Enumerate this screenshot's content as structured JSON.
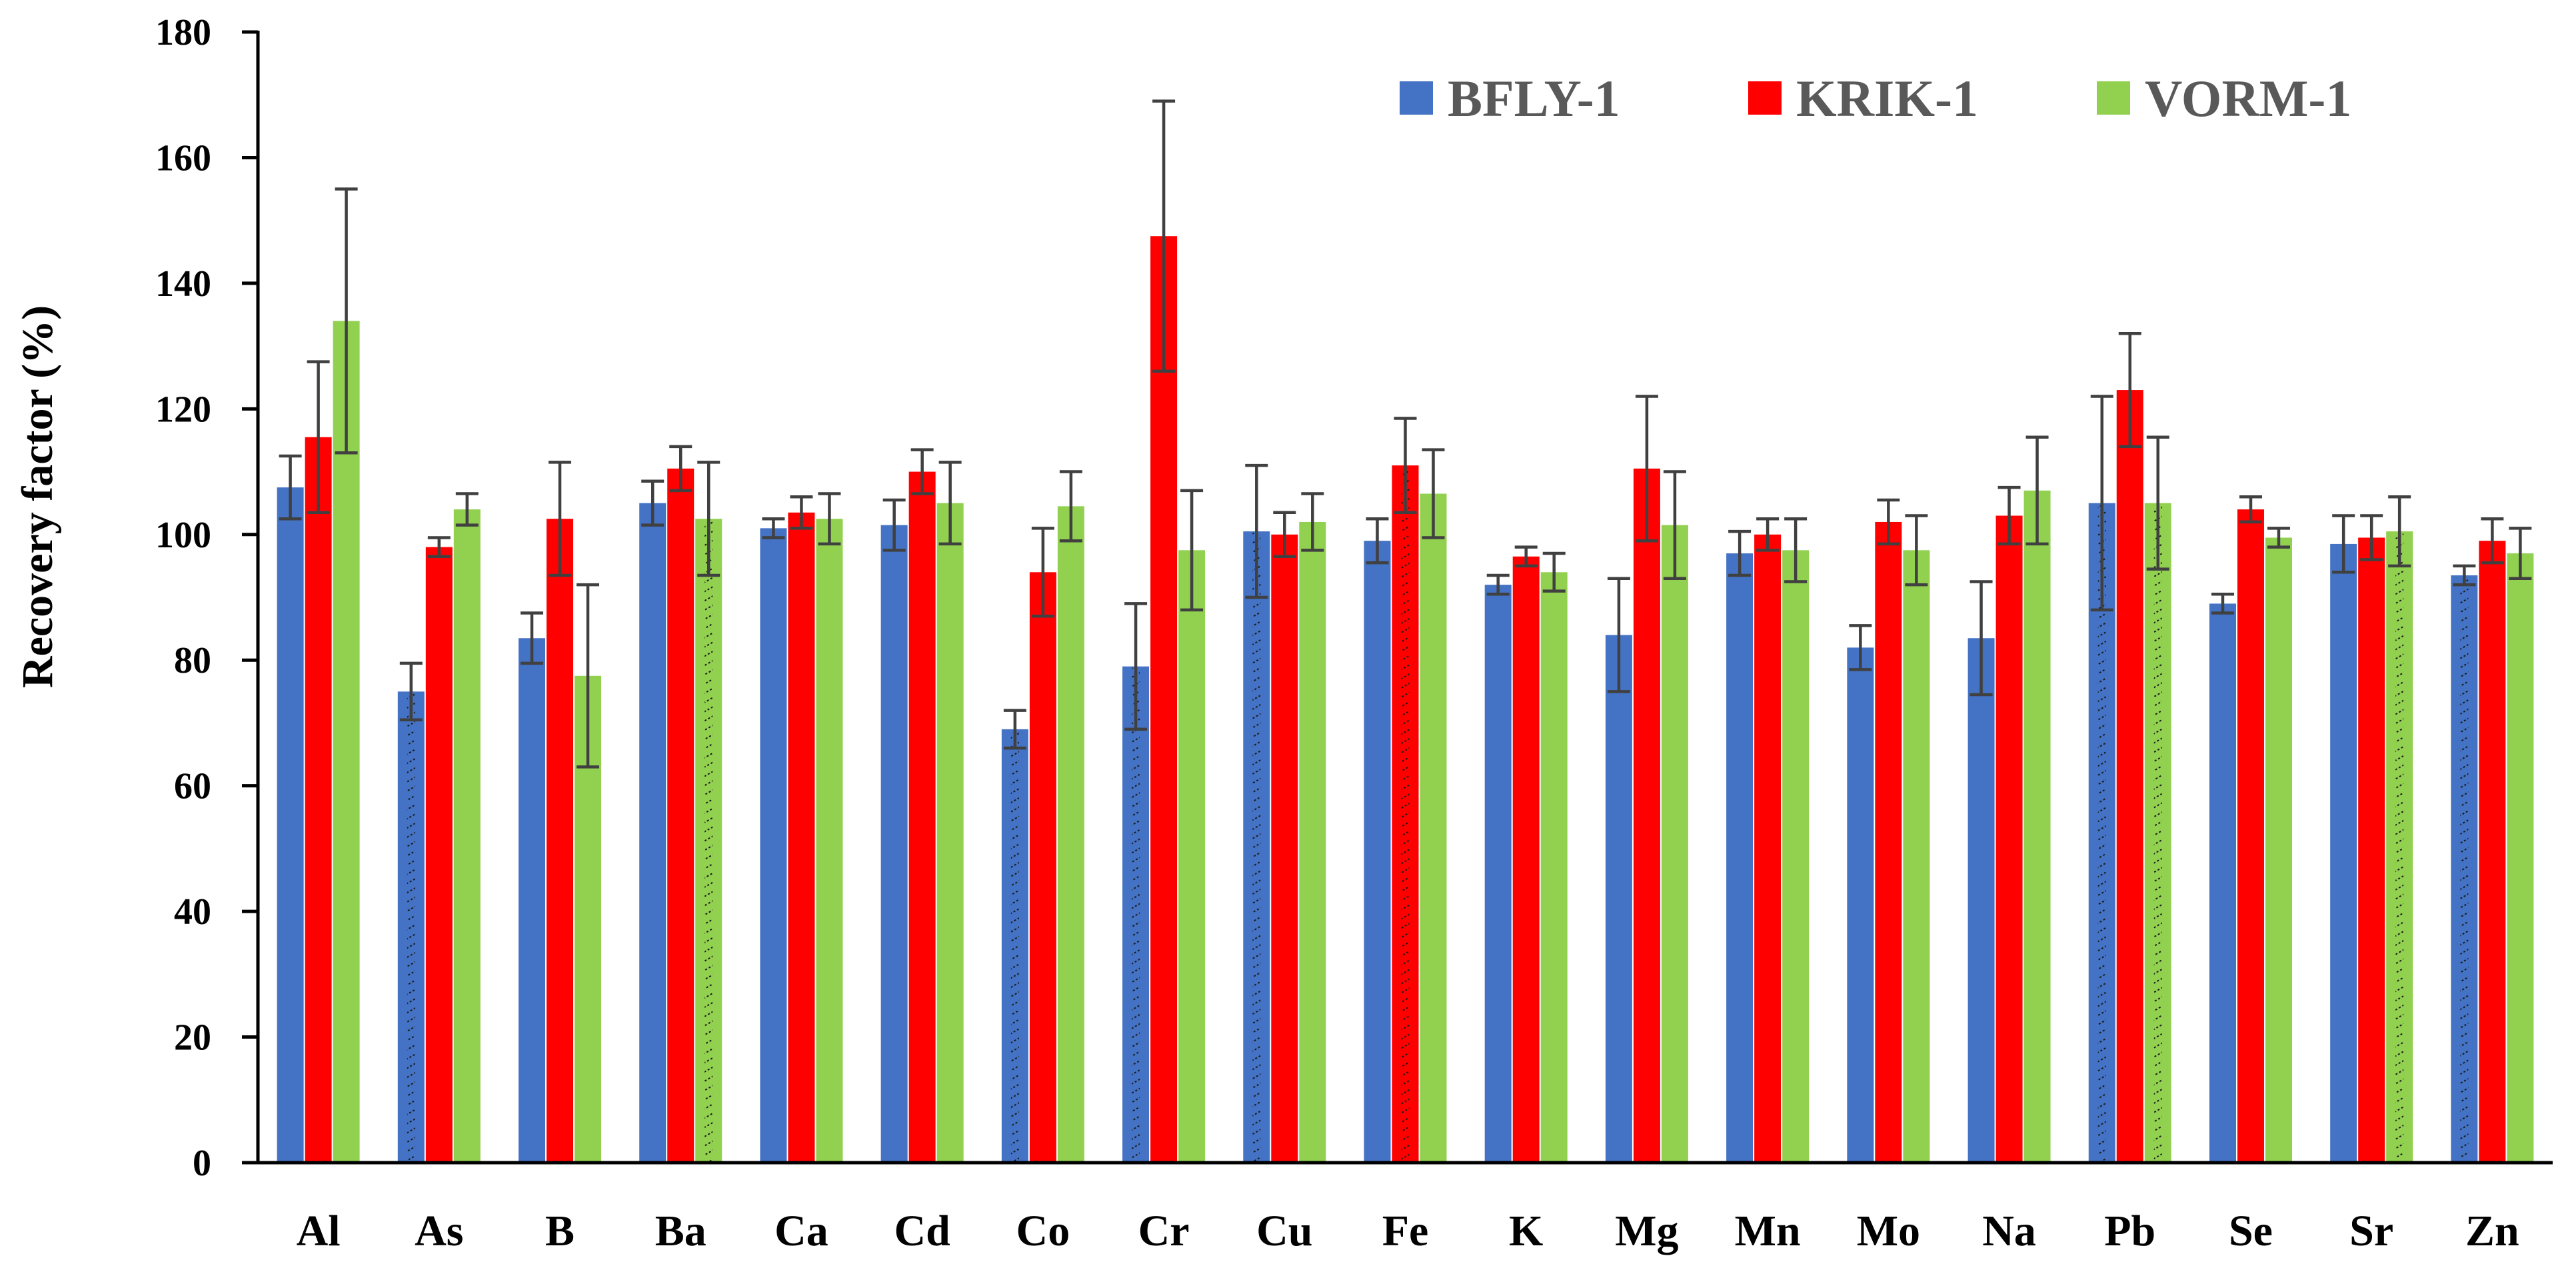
{
  "chart_data": {
    "type": "bar",
    "title": "",
    "xlabel": "",
    "ylabel": "Recovery factor (%)",
    "ylim": [
      0,
      180
    ],
    "yticks": [
      0,
      20,
      40,
      60,
      80,
      100,
      120,
      140,
      160,
      180
    ],
    "grid": false,
    "legend_position": "top-right",
    "error_bars": true,
    "categories": [
      "Al",
      "As",
      "B",
      "Ba",
      "Ca",
      "Cd",
      "Co",
      "Cr",
      "Cu",
      "Fe",
      "K",
      "Mg",
      "Mn",
      "Mo",
      "Na",
      "Pb",
      "Se",
      "Sr",
      "Zn"
    ],
    "series": [
      {
        "name": "BFLY-1",
        "color": "#4472C4",
        "values": [
          107.5,
          75,
          83.5,
          105,
          101,
          101.5,
          69,
          79,
          100.5,
          99,
          92,
          84,
          97,
          82,
          83.5,
          105,
          89,
          98.5,
          93.5
        ],
        "errors": [
          5,
          4.5,
          4,
          3.5,
          1.5,
          4,
          3,
          10,
          10.5,
          3.5,
          1.5,
          9,
          3.5,
          3.5,
          9,
          17,
          1.5,
          4.5,
          1.5
        ],
        "hatched": [
          false,
          true,
          false,
          false,
          false,
          false,
          true,
          true,
          true,
          false,
          false,
          false,
          false,
          false,
          false,
          true,
          false,
          false,
          true
        ]
      },
      {
        "name": "KRIK-1",
        "color": "#FF0000",
        "values": [
          115.5,
          98,
          102.5,
          110.5,
          103.5,
          110,
          94,
          147.5,
          100,
          111,
          96.5,
          110.5,
          100,
          102,
          103,
          123,
          104,
          99.5,
          99
        ],
        "errors": [
          12,
          1.5,
          9,
          3.5,
          2.5,
          3.5,
          7,
          21.5,
          3.5,
          7.5,
          1.5,
          11.5,
          2.5,
          3.5,
          4.5,
          9,
          2,
          3.5,
          3.5
        ],
        "hatched": [
          false,
          false,
          false,
          false,
          false,
          false,
          false,
          false,
          false,
          true,
          false,
          false,
          false,
          false,
          false,
          false,
          false,
          false,
          false
        ]
      },
      {
        "name": "VORM-1",
        "color": "#92D050",
        "values": [
          134,
          104,
          77.5,
          102.5,
          102.5,
          105,
          104.5,
          97.5,
          102,
          106.5,
          94,
          101.5,
          97.5,
          97.5,
          107,
          105,
          99.5,
          100.5,
          97
        ],
        "errors": [
          21,
          2.5,
          14.5,
          9,
          4,
          6.5,
          5.5,
          9.5,
          4.5,
          7,
          3,
          8.5,
          5,
          5.5,
          8.5,
          10.5,
          1.5,
          5.5,
          4
        ],
        "hatched": [
          false,
          false,
          false,
          true,
          false,
          false,
          false,
          false,
          false,
          false,
          false,
          false,
          false,
          false,
          false,
          true,
          false,
          true,
          false
        ]
      }
    ]
  }
}
